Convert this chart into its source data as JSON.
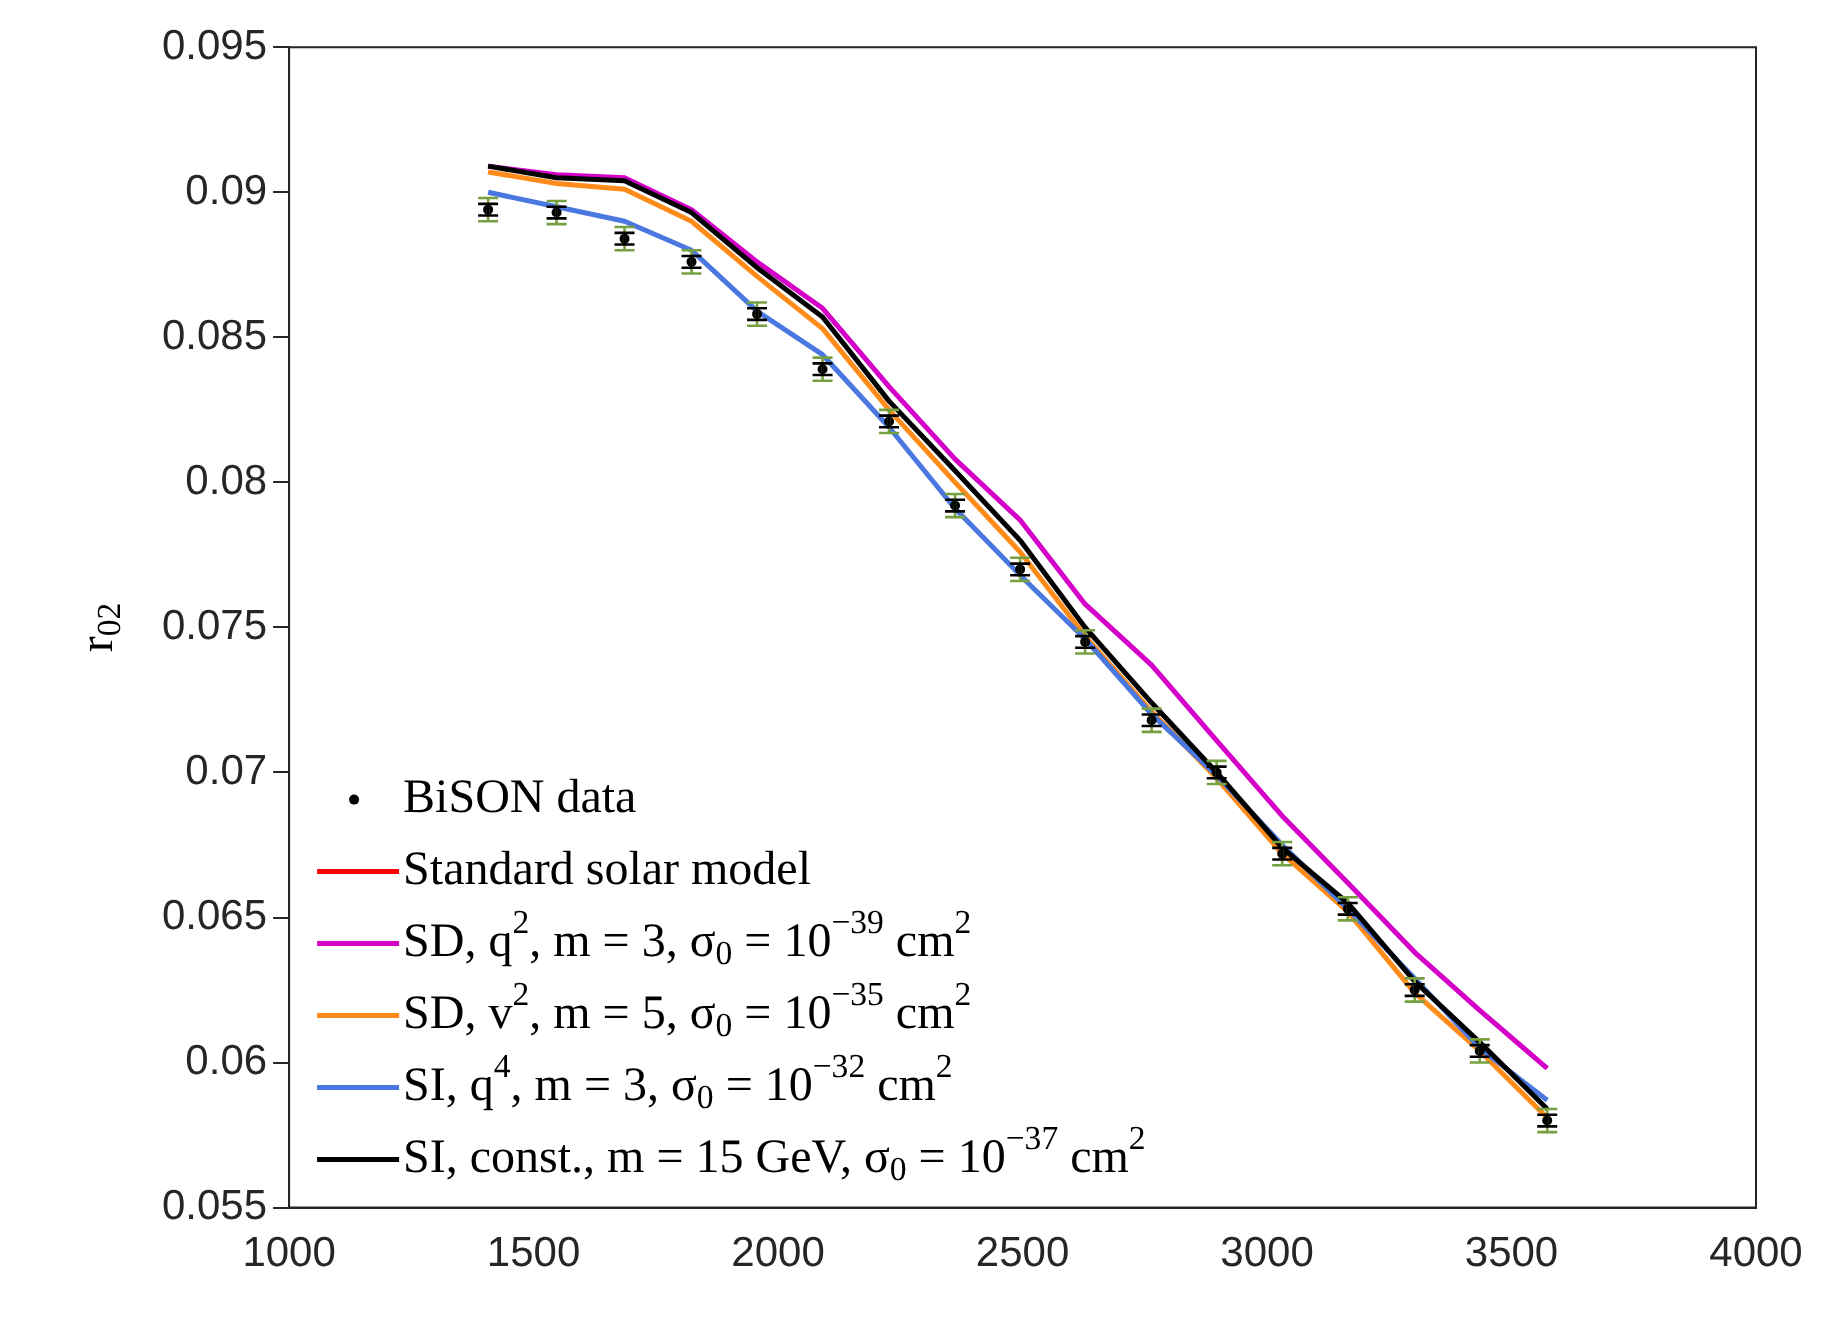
{
  "chart_data": {
    "type": "line",
    "ylabel": "r$_{02}$",
    "x": [
      1407,
      1547,
      1686,
      1823,
      1957,
      2091,
      2227,
      2362,
      2495,
      2628,
      2764,
      2897,
      3031,
      3165,
      3302,
      3435,
      3573
    ],
    "xlim": [
      1000,
      4000
    ],
    "xticks": [
      1000,
      1500,
      2000,
      2500,
      3000,
      3500,
      4000
    ],
    "ylim": [
      0.055,
      0.095
    ],
    "yticks": [
      0.055,
      0.06,
      0.065,
      0.07,
      0.075,
      0.08,
      0.085,
      0.09,
      0.095
    ],
    "grid": false,
    "legend": "bottom left",
    "series": [
      {
        "type": "scatter",
        "color": "#77a040",
        "values": [
          0.0894,
          0.0893,
          0.0884,
          0.0876,
          0.0858,
          0.0839,
          0.0821,
          0.0792,
          0.077,
          0.0745,
          0.0718,
          0.07,
          0.0672,
          0.0653,
          0.0625,
          0.0604,
          0.058
        ],
        "errors": [
          0.0004,
          0.0004,
          0.0004,
          0.0004,
          0.0004,
          0.0004,
          0.0004,
          0.0004,
          0.0004,
          0.0004,
          0.0004,
          0.0004,
          0.0004,
          0.0004,
          0.0004,
          0.0004,
          0.0004
        ]
      },
      {
        "type": "scatter",
        "name": "BiSON data",
        "color": "#000000",
        "marker": "circle",
        "values": [
          0.0894,
          0.0893,
          0.0884,
          0.0876,
          0.0858,
          0.0839,
          0.0821,
          0.0792,
          0.077,
          0.0745,
          0.0718,
          0.07,
          0.0672,
          0.0653,
          0.0625,
          0.0604,
          0.058
        ],
        "errors": [
          0.0002,
          0.0002,
          0.0002,
          0.0002,
          0.0002,
          0.0002,
          0.0002,
          0.0002,
          0.0002,
          0.0002,
          0.0002,
          0.0002,
          0.0002,
          0.0002,
          0.0002,
          0.0002,
          0.0002
        ]
      },
      {
        "name": "Standard solar model",
        "color": "#ff0000",
        "values": [
          null,
          null,
          null,
          null,
          null,
          null,
          null,
          null,
          null,
          null,
          null,
          null,
          null,
          null,
          null,
          null,
          null
        ]
      },
      {
        "name": "SD, q$^{2}$, m = 3, σ$_{0}$ = 10$^{−39}$ cm$^{2}$",
        "color": "#d400c8",
        "values": [
          0.0909,
          0.0906,
          0.0905,
          0.0894,
          0.0876,
          0.086,
          0.0833,
          0.0808,
          0.0787,
          0.0758,
          0.0737,
          0.0711,
          0.0685,
          0.0662,
          0.0638,
          0.0618,
          0.0598
        ]
      },
      {
        "name": "SD, v$^{2}$, m = 5, σ$_{0}$ = 10$^{−35}$ cm$^{2}$",
        "color": "#ff8c1a",
        "values": [
          0.0907,
          0.0903,
          0.0901,
          0.089,
          0.0871,
          0.0853,
          0.0825,
          0.08,
          0.0776,
          0.0747,
          0.0721,
          0.0698,
          0.0672,
          0.0652,
          0.0624,
          0.0604,
          0.0581
        ]
      },
      {
        "name": "SI, q$^{4}$, m = 3, σ$_{0}$ = 10$^{−32}$ cm$^{2}$",
        "color": "#4a78e0",
        "values": [
          0.09,
          0.0895,
          0.089,
          0.088,
          0.0859,
          0.0844,
          0.0819,
          0.0791,
          0.0768,
          0.0746,
          0.072,
          0.0699,
          0.0675,
          0.0653,
          0.0629,
          0.0605,
          0.0587
        ]
      },
      {
        "name": "SI, const., m = 15 GeV, σ$_{0}$ = 10$^{−37}$ cm$^{2}$",
        "color": "#000000",
        "values": [
          0.0909,
          0.0905,
          0.0904,
          0.0893,
          0.0874,
          0.0857,
          0.0828,
          0.0804,
          0.078,
          0.075,
          0.0724,
          0.07,
          0.0674,
          0.0655,
          0.0628,
          0.0607,
          0.0584
        ]
      }
    ]
  }
}
